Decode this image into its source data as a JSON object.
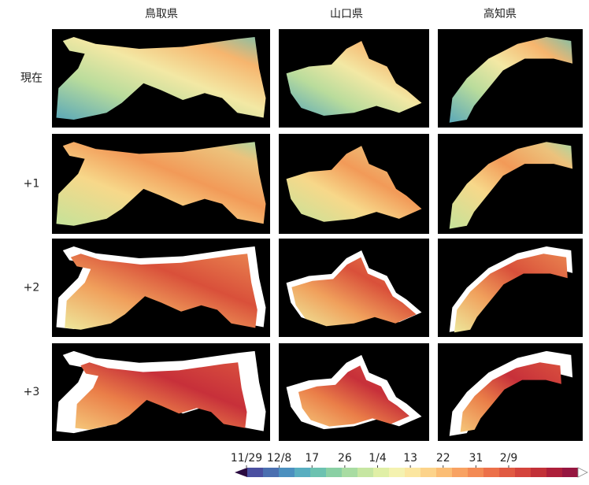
{
  "columns": [
    "鳥取県",
    "山口県",
    "高知県"
  ],
  "rows": [
    "現在",
    "+1",
    "+2",
    "+3"
  ],
  "colorbar": {
    "ticks": [
      "11/29",
      "12/8",
      "17",
      "26",
      "1/4",
      "13",
      "22",
      "31",
      "2/9"
    ]
  }
}
